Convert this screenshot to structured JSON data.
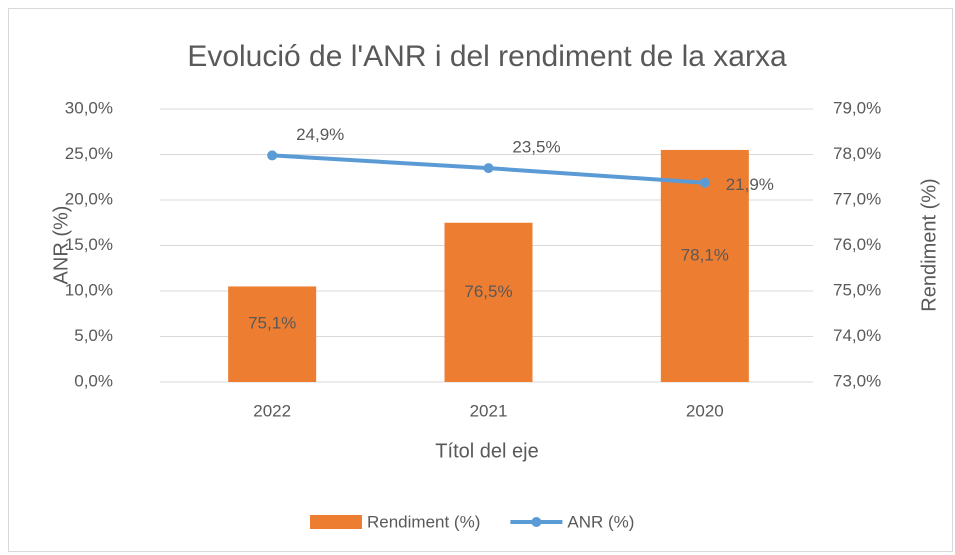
{
  "chart_data": {
    "type": "bar",
    "title": "Evolució de l'ANR i del rendiment de la xarxa",
    "categories": [
      "2022",
      "2021",
      "2020"
    ],
    "x_label": "Títol del eje",
    "y_label": "ANR (%)",
    "y2_label": "Rendiment (%)",
    "ylim": [
      0,
      30
    ],
    "yticks": [
      {
        "value": 0,
        "label": "0,0%"
      },
      {
        "value": 5,
        "label": "5,0%"
      },
      {
        "value": 10,
        "label": "10,0%"
      },
      {
        "value": 15,
        "label": "15,0%"
      },
      {
        "value": 20,
        "label": "20,0%"
      },
      {
        "value": 25,
        "label": "25,0%"
      },
      {
        "value": 30,
        "label": "30,0%"
      }
    ],
    "y2lim": [
      73,
      79
    ],
    "y2ticks": [
      {
        "value": 73,
        "label": "73,0%"
      },
      {
        "value": 74,
        "label": "74,0%"
      },
      {
        "value": 75,
        "label": "75,0%"
      },
      {
        "value": 76,
        "label": "76,0%"
      },
      {
        "value": 77,
        "label": "77,0%"
      },
      {
        "value": 78,
        "label": "78,0%"
      },
      {
        "value": 79,
        "label": "79,0%"
      }
    ],
    "grid": true,
    "legend": "bottom",
    "series": [
      {
        "name": "Rendiment (%)",
        "type": "bar",
        "axis": "y2",
        "color": "#ed7d31",
        "values": [
          75.1,
          76.5,
          78.1
        ],
        "value_labels": [
          "75,1%",
          "76,5%",
          "78,1%"
        ]
      },
      {
        "name": "ANR (%)",
        "type": "line",
        "axis": "y",
        "color": "#5b9bd5",
        "values": [
          24.9,
          23.5,
          21.9
        ],
        "value_labels": [
          "24,9%",
          "23,5%",
          "21,9%"
        ]
      }
    ]
  }
}
